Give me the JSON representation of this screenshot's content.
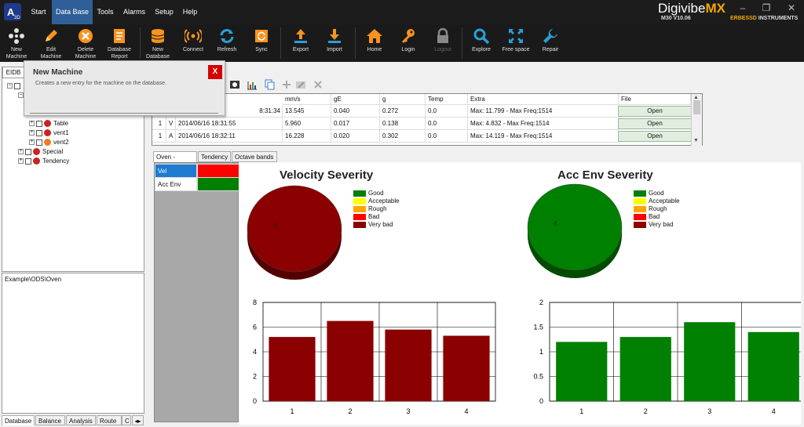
{
  "menubar": {
    "items": [
      "Start",
      "Data Base",
      "Tools",
      "Alarms",
      "Setup",
      "Help"
    ],
    "active": "Data Base",
    "brand": {
      "title_main": "Digivibe",
      "title_accent": "MX",
      "version": "M30 V10.06",
      "company_prefix": "ERBESSD",
      "company_suffix": "INSTRUMENTS"
    },
    "window_controls": [
      "minimize",
      "restore",
      "close"
    ]
  },
  "toolbar": {
    "buttons": [
      {
        "label": "New Machine",
        "icon": "new-machine-icon"
      },
      {
        "label": "Edit Machine",
        "icon": "pencil-icon"
      },
      {
        "label": "Delete Machine",
        "icon": "delete-icon"
      },
      {
        "label": "Database Report",
        "icon": "report-icon"
      },
      {
        "label": "New Database",
        "icon": "database-icon"
      },
      {
        "label": "Connect",
        "icon": "signal-icon"
      },
      {
        "label": "Refresh",
        "icon": "refresh-icon"
      },
      {
        "label": "Sync",
        "icon": "sync-icon"
      },
      {
        "label": "Export",
        "icon": "export-icon"
      },
      {
        "label": "Import",
        "icon": "import-icon"
      },
      {
        "label": "Home",
        "icon": "home-icon"
      },
      {
        "label": "Login",
        "icon": "key-icon"
      },
      {
        "label": "Logout",
        "icon": "lock-icon",
        "disabled": true
      },
      {
        "label": "Explore",
        "icon": "magnifier-icon"
      },
      {
        "label": "Free space",
        "icon": "free-space-icon"
      },
      {
        "label": "Repair",
        "icon": "wrench-icon"
      }
    ]
  },
  "tooltip": {
    "title": "New Machine",
    "description": "Creates a new entry for the machine on the database.",
    "close_label": "X"
  },
  "left_panel": {
    "tab": "EIDB",
    "tree": [
      {
        "label": "Table",
        "color": "#cc2222"
      },
      {
        "label": "vent1",
        "color": "#cc2222"
      },
      {
        "label": "vent2",
        "color": "#ee7a22"
      },
      {
        "label": "Special",
        "color": "#cc2222"
      },
      {
        "label": "Tendency",
        "color": "#cc2222"
      }
    ],
    "path": "Example\\ODS\\Oven",
    "bottom_tabs": [
      "Database",
      "Balance",
      "Analysis",
      "Route",
      "C"
    ],
    "active_bottom_tab": "Database"
  },
  "grid": {
    "columns": [
      "mm/s",
      "gE",
      "g",
      "Temp",
      "Extra",
      "File"
    ],
    "rows": [
      {
        "num": "",
        "axis": "",
        "date": "8:31:34",
        "mms": "13.545",
        "gE": "0.040",
        "g": "0.272",
        "temp": "0.0",
        "extra": "Max: 11.799 - Max Freq:1514",
        "file": "Open"
      },
      {
        "num": "1",
        "axis": "V",
        "date": "2014/06/16 18:31:55",
        "mms": "5.960",
        "gE": "0.017",
        "g": "0.138",
        "temp": "0.0",
        "extra": "Max: 4.832 - Max Freq:1514",
        "file": "Open"
      },
      {
        "num": "1",
        "axis": "A",
        "date": "2014/06/16 18:32:11",
        "mms": "16.228",
        "gE": "0.020",
        "g": "0.302",
        "temp": "0.0",
        "extra": "Max: 14.119 - Max Freq:1514",
        "file": "Open"
      }
    ]
  },
  "view_tabs": [
    "Oven - Points",
    "Tendency",
    "Octave bands"
  ],
  "active_view_tab": "Oven - Points",
  "series_legend": [
    {
      "name": "Vel",
      "color": "#ff0000",
      "selected": true
    },
    {
      "name": "Acc Env",
      "color": "#008000",
      "selected": false
    }
  ],
  "severity_legend": [
    {
      "label": "Good",
      "color": "#008000"
    },
    {
      "label": "Acceptable",
      "color": "#ffff00"
    },
    {
      "label": "Rough",
      "color": "#ffa500"
    },
    {
      "label": "Bad",
      "color": "#ff0000"
    },
    {
      "label": "Very bad",
      "color": "#8b0000"
    }
  ],
  "chart_data": [
    {
      "type": "pie",
      "title": "Velocity Severity",
      "slices": [
        {
          "label": "4",
          "value": 100,
          "color": "#8b0000"
        }
      ],
      "legend_placement": "right"
    },
    {
      "type": "bar",
      "title": "",
      "categories": [
        "1",
        "2",
        "3",
        "4"
      ],
      "values": [
        5.2,
        6.5,
        5.8,
        5.3
      ],
      "ylim": [
        0,
        8
      ],
      "yticks": [
        0,
        2,
        4,
        6,
        8
      ],
      "color": "#8b0000",
      "grid": true
    },
    {
      "type": "pie",
      "title": "Acc Env Severity",
      "slices": [
        {
          "label": "4",
          "value": 100,
          "color": "#008000"
        }
      ],
      "legend_placement": "right"
    },
    {
      "type": "bar",
      "title": "",
      "categories": [
        "1",
        "2",
        "3",
        "4"
      ],
      "values": [
        1.2,
        1.3,
        1.6,
        1.4
      ],
      "ylim": [
        0,
        2
      ],
      "yticks": [
        "0",
        "0.5",
        "1",
        "1.5",
        "2"
      ],
      "color": "#008000",
      "grid": true
    }
  ]
}
